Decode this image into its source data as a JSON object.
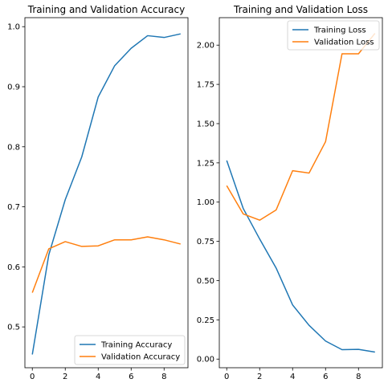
{
  "chart_data": [
    {
      "type": "line",
      "title": "Training and Validation Accuracy",
      "xlabel": "",
      "ylabel": "",
      "x": [
        0,
        1,
        2,
        3,
        4,
        5,
        6,
        7,
        8,
        9
      ],
      "xlim": [
        -0.45,
        9.45
      ],
      "ylim": [
        0.432,
        1.015
      ],
      "xticks": [
        0,
        2,
        4,
        6,
        8
      ],
      "xtick_labels": [
        "0",
        "2",
        "4",
        "6",
        "8"
      ],
      "yticks": [
        0.5,
        0.6,
        0.7,
        0.8,
        0.9,
        1.0
      ],
      "ytick_labels": [
        "0.5",
        "0.6",
        "0.7",
        "0.8",
        "0.9",
        "1.0"
      ],
      "grid": false,
      "legend_position": "lower-right",
      "series": [
        {
          "name": "Training Accuracy",
          "color": "#1f77b4",
          "values": [
            0.454,
            0.62,
            0.712,
            0.783,
            0.883,
            0.935,
            0.964,
            0.985,
            0.982,
            0.988
          ]
        },
        {
          "name": "Validation Accuracy",
          "color": "#ff7f0e",
          "values": [
            0.557,
            0.63,
            0.642,
            0.634,
            0.635,
            0.645,
            0.645,
            0.65,
            0.645,
            0.638
          ]
        }
      ]
    },
    {
      "type": "line",
      "title": "Training and Validation Loss",
      "xlabel": "",
      "ylabel": "",
      "x": [
        0,
        1,
        2,
        3,
        4,
        5,
        6,
        7,
        8,
        9
      ],
      "xlim": [
        -0.45,
        9.45
      ],
      "ylim": [
        -0.055,
        2.175
      ],
      "xticks": [
        0,
        2,
        4,
        6,
        8
      ],
      "xtick_labels": [
        "0",
        "2",
        "4",
        "6",
        "8"
      ],
      "yticks": [
        0.0,
        0.25,
        0.5,
        0.75,
        1.0,
        1.25,
        1.5,
        1.75,
        2.0
      ],
      "ytick_labels": [
        "0.00",
        "0.25",
        "0.50",
        "0.75",
        "1.00",
        "1.25",
        "1.50",
        "1.75",
        "2.00"
      ],
      "grid": false,
      "legend_position": "upper-right",
      "series": [
        {
          "name": "Training Loss",
          "color": "#1f77b4",
          "values": [
            1.265,
            0.96,
            0.765,
            0.58,
            0.345,
            0.215,
            0.115,
            0.06,
            0.062,
            0.045
          ]
        },
        {
          "name": "Validation Loss",
          "color": "#ff7f0e",
          "values": [
            1.105,
            0.925,
            0.885,
            0.95,
            1.2,
            1.185,
            1.385,
            1.945,
            1.945,
            2.075
          ]
        }
      ]
    }
  ]
}
